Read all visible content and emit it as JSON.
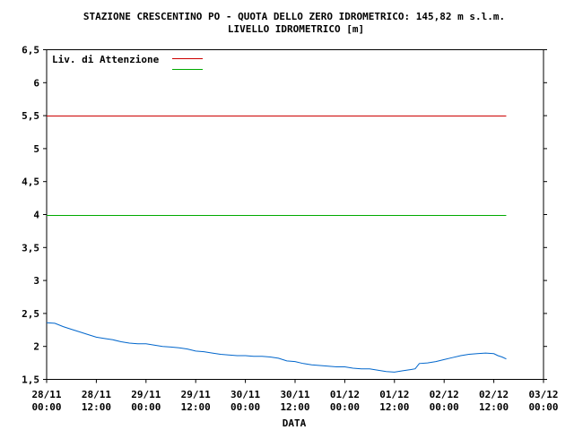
{
  "chart_data": {
    "type": "line",
    "title": "STAZIONE CRESCENTINO PO - QUOTA DELLO ZERO IDROMETRICO: 145,82 m s.l.m.",
    "subtitle": "LIVELLO IDROMETRICO [m]",
    "xlabel": "DATA",
    "ylabel": "",
    "ylim": [
      1.5,
      6.5
    ],
    "yticks": [
      "1,5",
      "2",
      "2,5",
      "3",
      "3,5",
      "4",
      "4,5",
      "5",
      "5,5",
      "6",
      "6,5"
    ],
    "ytick_values": [
      1.5,
      2,
      2.5,
      3,
      3.5,
      4,
      4.5,
      5,
      5.5,
      6,
      6.5
    ],
    "xlim_hours": [
      0,
      120
    ],
    "xticks": [
      {
        "hour": 0,
        "date": "28/11",
        "time": "00:00"
      },
      {
        "hour": 12,
        "date": "28/11",
        "time": "12:00"
      },
      {
        "hour": 24,
        "date": "29/11",
        "time": "00:00"
      },
      {
        "hour": 36,
        "date": "29/11",
        "time": "12:00"
      },
      {
        "hour": 48,
        "date": "30/11",
        "time": "00:00"
      },
      {
        "hour": 60,
        "date": "30/11",
        "time": "12:00"
      },
      {
        "hour": 72,
        "date": "01/12",
        "time": "00:00"
      },
      {
        "hour": 84,
        "date": "01/12",
        "time": "12:00"
      },
      {
        "hour": 96,
        "date": "02/12",
        "time": "00:00"
      },
      {
        "hour": 108,
        "date": "02/12",
        "time": "12:00"
      },
      {
        "hour": 120,
        "date": "03/12",
        "time": "00:00"
      }
    ],
    "grid": false,
    "legend": {
      "placement": "top-left",
      "entries": [
        {
          "label": "Liv. di Attenzione",
          "color": "#cc0000"
        },
        {
          "label": "",
          "color": "#00aa00"
        }
      ]
    },
    "thresholds": [
      {
        "name": "Liv. di Attenzione",
        "value": 5.5,
        "color": "#cc0000",
        "x_start": 0,
        "x_end": 111
      },
      {
        "name": "",
        "value": 4.0,
        "color": "#00aa00",
        "x_start": 0,
        "x_end": 111
      }
    ],
    "series": [
      {
        "color": "#0066cc",
        "points": [
          [
            0,
            2.36
          ],
          [
            2,
            2.35
          ],
          [
            4,
            2.3
          ],
          [
            6,
            2.26
          ],
          [
            8,
            2.22
          ],
          [
            10,
            2.18
          ],
          [
            12,
            2.14
          ],
          [
            14,
            2.12
          ],
          [
            16,
            2.1
          ],
          [
            18,
            2.07
          ],
          [
            20,
            2.05
          ],
          [
            22,
            2.04
          ],
          [
            24,
            2.04
          ],
          [
            26,
            2.02
          ],
          [
            28,
            2.0
          ],
          [
            30,
            1.99
          ],
          [
            32,
            1.98
          ],
          [
            34,
            1.96
          ],
          [
            36,
            1.93
          ],
          [
            38,
            1.92
          ],
          [
            40,
            1.9
          ],
          [
            42,
            1.88
          ],
          [
            44,
            1.87
          ],
          [
            46,
            1.86
          ],
          [
            48,
            1.86
          ],
          [
            50,
            1.85
          ],
          [
            52,
            1.85
          ],
          [
            54,
            1.84
          ],
          [
            56,
            1.82
          ],
          [
            58,
            1.78
          ],
          [
            60,
            1.77
          ],
          [
            62,
            1.74
          ],
          [
            64,
            1.72
          ],
          [
            66,
            1.71
          ],
          [
            68,
            1.7
          ],
          [
            70,
            1.69
          ],
          [
            72,
            1.69
          ],
          [
            74,
            1.67
          ],
          [
            76,
            1.66
          ],
          [
            78,
            1.66
          ],
          [
            80,
            1.64
          ],
          [
            82,
            1.62
          ],
          [
            84,
            1.61
          ],
          [
            86,
            1.63
          ],
          [
            88,
            1.65
          ],
          [
            89,
            1.66
          ],
          [
            90,
            1.74
          ],
          [
            92,
            1.75
          ],
          [
            94,
            1.77
          ],
          [
            96,
            1.8
          ],
          [
            98,
            1.83
          ],
          [
            100,
            1.86
          ],
          [
            102,
            1.88
          ],
          [
            104,
            1.89
          ],
          [
            106,
            1.9
          ],
          [
            108,
            1.89
          ],
          [
            109,
            1.86
          ],
          [
            110,
            1.84
          ],
          [
            111,
            1.81
          ]
        ]
      }
    ]
  }
}
